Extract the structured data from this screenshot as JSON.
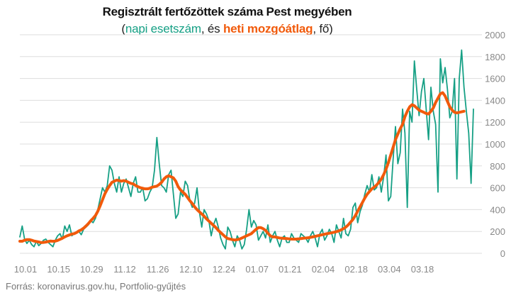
{
  "title": "Regisztrált fertőzöttek száma Pest megyében",
  "subtitle": {
    "open": "(",
    "daily_label": "napi esetszám",
    "mid": ", és ",
    "avg_label": "heti mozgóátlag",
    "close": ", fő)"
  },
  "source": "Forrás: koronavirus.gov.hu, Portfolio-gyűjtés",
  "colors": {
    "daily": "#16a085",
    "average": "#f15a0b",
    "grid": "#dddddd",
    "tick_text": "#888888"
  },
  "chart_data": {
    "type": "line",
    "title": "Regisztrált fertőzöttek száma Pest megyében",
    "xlabel": "",
    "ylabel": "",
    "ylim": [
      0,
      2000
    ],
    "y_ticks": [
      0,
      200,
      400,
      600,
      800,
      1000,
      1200,
      1400,
      1600,
      1800,
      2000
    ],
    "y_axis_position": "right",
    "grid": "horizontal",
    "x_tick_labels": [
      {
        "day": 0,
        "label": "10.01"
      },
      {
        "day": 14,
        "label": "10.15"
      },
      {
        "day": 28,
        "label": "10.29"
      },
      {
        "day": 42,
        "label": "11.12"
      },
      {
        "day": 56,
        "label": "11.26"
      },
      {
        "day": 70,
        "label": "12.10"
      },
      {
        "day": 84,
        "label": "12.24"
      },
      {
        "day": 98,
        "label": "01.07"
      },
      {
        "day": 112,
        "label": "01.21"
      },
      {
        "day": 126,
        "label": "02.04"
      },
      {
        "day": 140,
        "label": "02.18"
      },
      {
        "day": 154,
        "label": "03.04"
      },
      {
        "day": 168,
        "label": "03.18"
      }
    ],
    "x_start_date": "2020-10-01",
    "series": [
      {
        "name": "napi esetszám",
        "color": "#16a085",
        "values": [
          150,
          250,
          130,
          90,
          120,
          80,
          60,
          110,
          70,
          90,
          120,
          130,
          100,
          80,
          60,
          120,
          160,
          180,
          130,
          250,
          200,
          260,
          160,
          180,
          190,
          200,
          170,
          220,
          240,
          260,
          300,
          280,
          320,
          400,
          500,
          600,
          560,
          620,
          800,
          760,
          640,
          560,
          700,
          560,
          640,
          680,
          600,
          520,
          640,
          700,
          560,
          560,
          600,
          480,
          500,
          560,
          600,
          760,
          1060,
          820,
          620,
          600,
          560,
          720,
          760,
          540,
          320,
          360,
          560,
          520,
          660,
          620,
          480,
          420,
          460,
          600,
          380,
          240,
          400,
          360,
          300,
          160,
          260,
          320,
          240,
          140,
          80,
          40,
          240,
          200,
          120,
          60,
          160,
          120,
          40,
          80,
          220,
          400,
          240,
          300,
          260,
          120,
          160,
          200,
          140,
          260,
          100,
          160,
          200,
          120,
          60,
          140,
          160,
          100,
          100,
          180,
          140,
          120,
          100,
          180,
          160,
          140,
          100,
          160,
          200,
          140,
          60,
          180,
          220,
          120,
          160,
          220,
          180,
          100,
          260,
          200,
          140,
          320,
          180,
          160,
          220,
          420,
          460,
          280,
          380,
          440,
          540,
          620,
          560,
          720,
          580,
          600,
          700,
          560,
          700,
          900,
          480,
          520,
          860,
          1160,
          820,
          920,
          1320,
          1100,
          420,
          1300,
          1200,
          1760,
          1500,
          1260,
          1480,
          1600,
          1320,
          1040,
          1520,
          1300,
          1180,
          560,
          1780,
          1560,
          1700,
          1500,
          1240,
          1300,
          1600,
          680,
          1600,
          1860,
          1520,
          1300,
          1100,
          640,
          1320
        ]
      },
      {
        "name": "heti mozgóátlag",
        "color": "#f15a0b",
        "values": [
          110,
          110,
          120,
          125,
          125,
          120,
          112,
          108,
          104,
          98,
          100,
          103,
          108,
          112,
          110,
          111,
          118,
          128,
          138,
          150,
          160,
          168,
          176,
          180,
          190,
          205,
          215,
          230,
          250,
          272,
          298,
          320,
          345,
          385,
          435,
          490,
          545,
          585,
          620,
          650,
          660,
          670,
          665,
          660,
          665,
          660,
          650,
          640,
          635,
          620,
          610,
          600,
          595,
          590,
          590,
          595,
          605,
          610,
          615,
          630,
          650,
          680,
          700,
          710,
          700,
          690,
          660,
          610,
          580,
          560,
          540,
          510,
          480,
          455,
          425,
          400,
          380,
          360,
          340,
          315,
          295,
          275,
          255,
          235,
          210,
          190,
          170,
          150,
          135,
          130,
          125,
          122,
          125,
          130,
          140,
          150,
          160,
          170,
          180,
          200,
          220,
          235,
          235,
          225,
          210,
          185,
          160,
          150,
          150,
          145,
          140,
          138,
          136,
          135,
          132,
          130,
          130,
          130,
          132,
          135,
          138,
          140,
          142,
          146,
          150,
          155,
          160,
          165,
          170,
          175,
          180,
          184,
          188,
          193,
          198,
          205,
          215,
          225,
          240,
          260,
          285,
          310,
          345,
          385,
          425,
          465,
          505,
          540,
          565,
          590,
          605,
          625,
          650,
          680,
          720,
          770,
          830,
          900,
          970,
          1040,
          1090,
          1140,
          1180,
          1250,
          1300,
          1340,
          1360,
          1350,
          1330,
          1310,
          1300,
          1290,
          1280,
          1275,
          1300,
          1330,
          1380,
          1420,
          1460,
          1470,
          1440,
          1390,
          1340,
          1310,
          1290,
          1285,
          1290,
          1295,
          1300
        ]
      }
    ]
  }
}
